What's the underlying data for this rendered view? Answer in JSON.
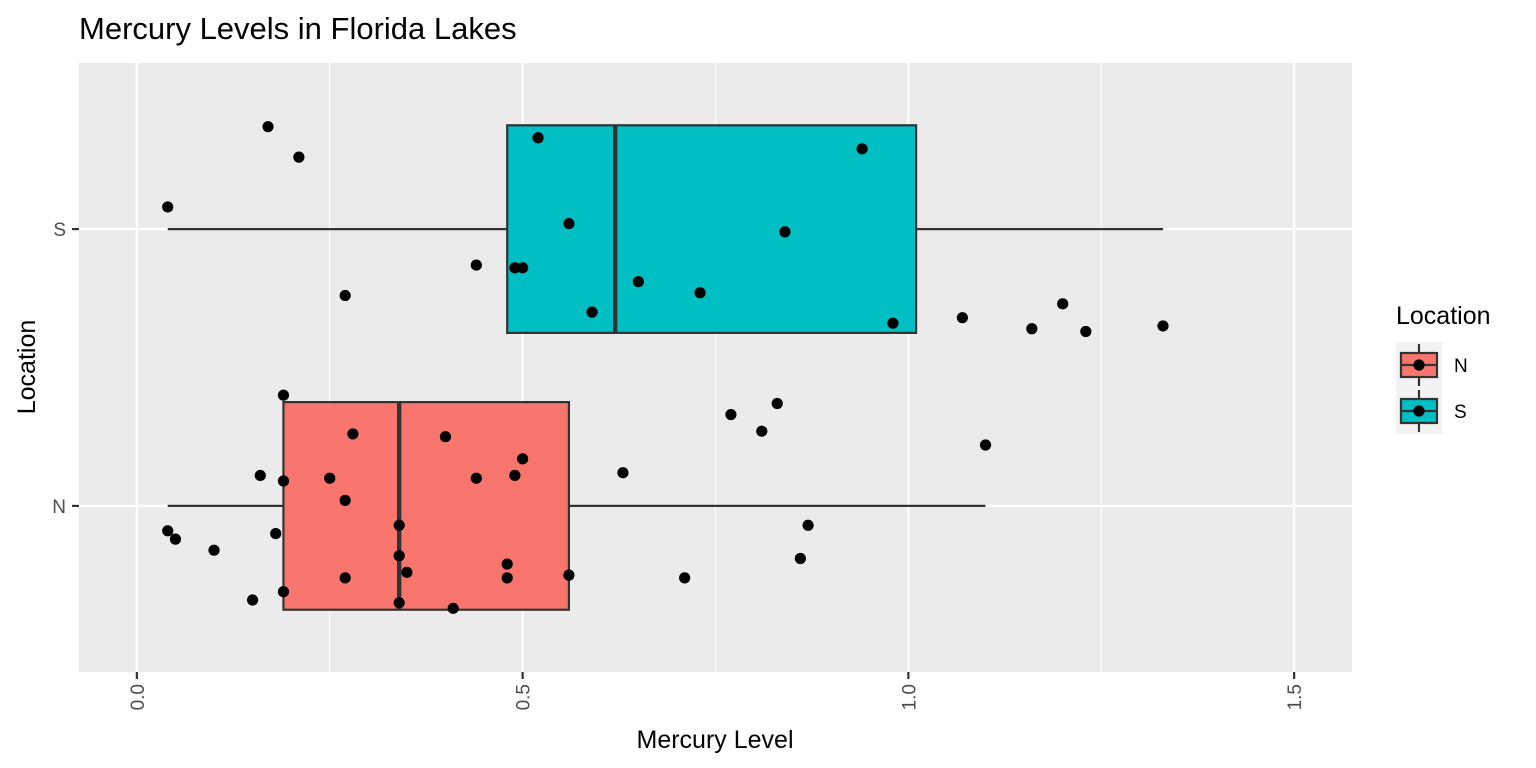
{
  "chart_data": {
    "type": "boxplot",
    "title": "Mercury Levels in Florida Lakes",
    "xlabel": "Mercury Level",
    "ylabel": "Location",
    "xlim": [
      -0.075,
      1.575
    ],
    "x_ticks": [
      0.0,
      0.5,
      1.0,
      1.5
    ],
    "x_tick_labels": [
      "0.0",
      "0.5",
      "1.0",
      "1.5"
    ],
    "categories": [
      "N",
      "S"
    ],
    "grid": true,
    "legend": {
      "title": "Location",
      "position": "right",
      "entries": [
        "N",
        "S"
      ]
    },
    "colors": {
      "N": "#F8766D",
      "S": "#00BFC4",
      "panel": "#EBEBEB",
      "grid": "#FFFFFF",
      "points": "#000000"
    },
    "boxes": [
      {
        "category": "N",
        "whisker_low": 0.04,
        "q1": 0.19,
        "median": 0.34,
        "q3": 0.56,
        "whisker_high": 1.1
      },
      {
        "category": "S",
        "whisker_low": 0.04,
        "q1": 0.48,
        "median": 0.62,
        "q3": 1.01,
        "whisker_high": 1.33
      }
    ],
    "points": [
      {
        "category": "N",
        "x": 0.04,
        "jitter": -0.09
      },
      {
        "category": "N",
        "x": 0.05,
        "jitter": -0.12
      },
      {
        "category": "N",
        "x": 0.1,
        "jitter": -0.16
      },
      {
        "category": "N",
        "x": 0.15,
        "jitter": -0.34
      },
      {
        "category": "N",
        "x": 0.16,
        "jitter": 0.11
      },
      {
        "category": "N",
        "x": 0.18,
        "jitter": -0.1
      },
      {
        "category": "N",
        "x": 0.19,
        "jitter": 0.4
      },
      {
        "category": "N",
        "x": 0.19,
        "jitter": 0.09
      },
      {
        "category": "N",
        "x": 0.19,
        "jitter": -0.31
      },
      {
        "category": "N",
        "x": 0.25,
        "jitter": 0.1
      },
      {
        "category": "N",
        "x": 0.27,
        "jitter": 0.02
      },
      {
        "category": "N",
        "x": 0.27,
        "jitter": -0.26
      },
      {
        "category": "N",
        "x": 0.28,
        "jitter": 0.26
      },
      {
        "category": "N",
        "x": 0.34,
        "jitter": -0.18
      },
      {
        "category": "N",
        "x": 0.34,
        "jitter": -0.35
      },
      {
        "category": "N",
        "x": 0.34,
        "jitter": -0.07
      },
      {
        "category": "N",
        "x": 0.35,
        "jitter": -0.24
      },
      {
        "category": "N",
        "x": 0.4,
        "jitter": 0.25
      },
      {
        "category": "N",
        "x": 0.41,
        "jitter": -0.37
      },
      {
        "category": "N",
        "x": 0.44,
        "jitter": 0.1
      },
      {
        "category": "N",
        "x": 0.48,
        "jitter": -0.21
      },
      {
        "category": "N",
        "x": 0.48,
        "jitter": -0.26
      },
      {
        "category": "N",
        "x": 0.49,
        "jitter": 0.11
      },
      {
        "category": "N",
        "x": 0.5,
        "jitter": 0.17
      },
      {
        "category": "N",
        "x": 0.56,
        "jitter": -0.25
      },
      {
        "category": "N",
        "x": 0.63,
        "jitter": 0.12
      },
      {
        "category": "N",
        "x": 0.71,
        "jitter": -0.26
      },
      {
        "category": "N",
        "x": 0.77,
        "jitter": 0.33
      },
      {
        "category": "N",
        "x": 0.81,
        "jitter": 0.27
      },
      {
        "category": "N",
        "x": 0.83,
        "jitter": 0.37
      },
      {
        "category": "N",
        "x": 0.86,
        "jitter": -0.19
      },
      {
        "category": "N",
        "x": 0.87,
        "jitter": -0.07
      },
      {
        "category": "N",
        "x": 1.1,
        "jitter": 0.22
      },
      {
        "category": "S",
        "x": 0.04,
        "jitter": 0.08
      },
      {
        "category": "S",
        "x": 0.17,
        "jitter": 0.37
      },
      {
        "category": "S",
        "x": 0.21,
        "jitter": 0.26
      },
      {
        "category": "S",
        "x": 0.27,
        "jitter": -0.24
      },
      {
        "category": "S",
        "x": 0.44,
        "jitter": -0.13
      },
      {
        "category": "S",
        "x": 0.49,
        "jitter": -0.14
      },
      {
        "category": "S",
        "x": 0.5,
        "jitter": -0.14
      },
      {
        "category": "S",
        "x": 0.52,
        "jitter": 0.33
      },
      {
        "category": "S",
        "x": 0.56,
        "jitter": 0.02
      },
      {
        "category": "S",
        "x": 0.59,
        "jitter": -0.3
      },
      {
        "category": "S",
        "x": 0.65,
        "jitter": -0.19
      },
      {
        "category": "S",
        "x": 0.73,
        "jitter": -0.23
      },
      {
        "category": "S",
        "x": 0.84,
        "jitter": -0.01
      },
      {
        "category": "S",
        "x": 0.94,
        "jitter": 0.29
      },
      {
        "category": "S",
        "x": 0.98,
        "jitter": -0.34
      },
      {
        "category": "S",
        "x": 1.07,
        "jitter": -0.32
      },
      {
        "category": "S",
        "x": 1.16,
        "jitter": -0.36
      },
      {
        "category": "S",
        "x": 1.2,
        "jitter": -0.27
      },
      {
        "category": "S",
        "x": 1.23,
        "jitter": -0.37
      },
      {
        "category": "S",
        "x": 1.33,
        "jitter": -0.35
      }
    ]
  }
}
